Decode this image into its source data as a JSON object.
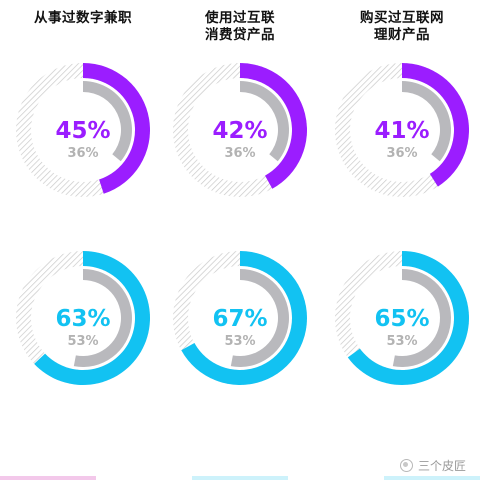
{
  "column_titles": [
    [
      "从事过数字兼职"
    ],
    [
      "使用过互联",
      "消费贷产品"
    ],
    [
      "购买过互联网",
      "理财产品"
    ]
  ],
  "colors": {
    "purple": "#9b1dff",
    "cyan": "#12c2f2",
    "inner_gray": "#b9b9bd",
    "hatch": "#cdcdcd",
    "percent_text_gray": "#b3b3b3"
  },
  "chart_data": [
    {
      "type": "donut",
      "categories": [
        "从事过数字兼职",
        "使用过互联消费贷产品",
        "购买过互联网理财产品"
      ],
      "series": [
        {
          "values": [
            45,
            42,
            41
          ],
          "labels": [
            "45%",
            "42%",
            "41%"
          ],
          "color": "#9b1dff"
        },
        {
          "values": [
            36,
            36,
            36
          ],
          "labels": [
            "36%",
            "36%",
            "36%"
          ],
          "color": "#b9b9bd"
        }
      ],
      "ylim": [
        0,
        100
      ]
    },
    {
      "type": "donut",
      "categories": [
        "从事过数字兼职",
        "使用过互联消费贷产品",
        "购买过互联网理财产品"
      ],
      "series": [
        {
          "values": [
            63,
            67,
            65
          ],
          "labels": [
            "63%",
            "67%",
            "65%"
          ],
          "color": "#12c2f2"
        },
        {
          "values": [
            53,
            53,
            53
          ],
          "labels": [
            "53%",
            "53%",
            "53%"
          ],
          "color": "#b9b9bd"
        }
      ],
      "ylim": [
        0,
        100
      ]
    }
  ],
  "watermark": "三个皮匠"
}
